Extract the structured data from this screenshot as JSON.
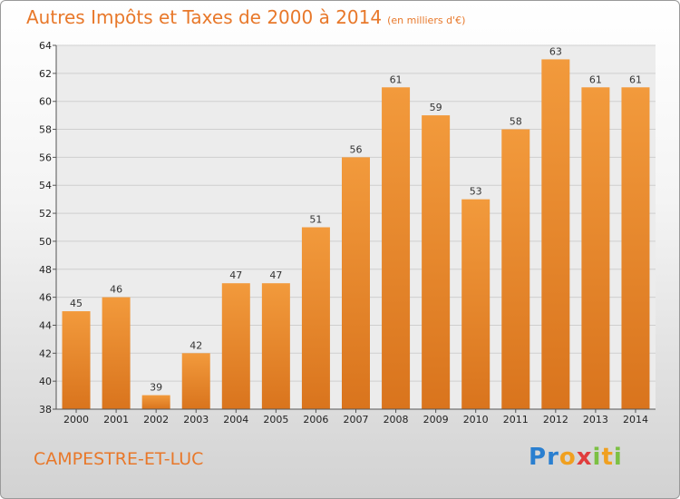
{
  "chart_data": {
    "type": "bar",
    "title": "Autres Impôts et Taxes de 2000 à 2014",
    "unit_note": "(en milliers d'€)",
    "categories": [
      "2000",
      "2001",
      "2002",
      "2003",
      "2004",
      "2005",
      "2006",
      "2007",
      "2008",
      "2009",
      "2010",
      "2011",
      "2012",
      "2013",
      "2014"
    ],
    "values": [
      45,
      46,
      39,
      42,
      47,
      47,
      51,
      56,
      61,
      59,
      53,
      58,
      63,
      61,
      61
    ],
    "ylim": [
      38,
      64
    ],
    "yticks": [
      38,
      40,
      42,
      44,
      46,
      48,
      50,
      52,
      54,
      56,
      58,
      60,
      62,
      64
    ],
    "grid": true,
    "bar_color": "#f29a3c",
    "bar_color_dark": "#d9741d"
  },
  "footer": {
    "commune": "CAMPESTRE-ET-LUC",
    "logo_letters": [
      "P",
      "r",
      "o",
      "x",
      "i",
      "t",
      "i"
    ]
  }
}
